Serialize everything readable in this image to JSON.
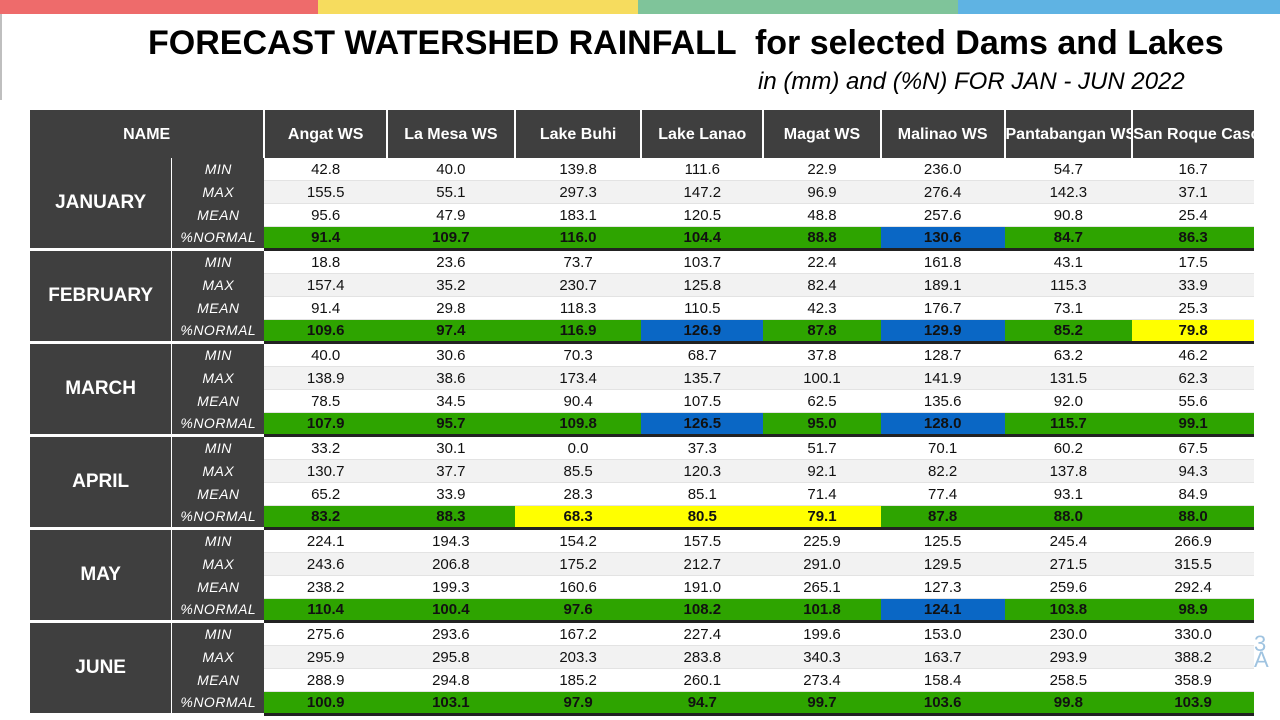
{
  "title": "FORECAST WATERSHED RAINFALL  for selected Dams and Lakes",
  "subtitle": "in (mm) and (%N) FOR JAN - JUN 2022",
  "colors": {
    "top_bar": [
      "#ee6b6b",
      "#f6dc5e",
      "#7fc49a",
      "#5fb3e3"
    ],
    "header_bg": "#3f3f3f",
    "normal_above": "#2ea400",
    "normal_much_above": "#0a67c5",
    "normal_below": "#ffff00"
  },
  "table": {
    "name_header": "NAME",
    "columns": [
      "Angat WS",
      "La Mesa WS",
      "Lake Buhi",
      "Lake Lanao",
      "Magat WS",
      "Malinao WS",
      "Pantabangan WS",
      "San Roque Cascade WS"
    ],
    "stat_labels": [
      "MIN",
      "MAX",
      "MEAN",
      "%NORMAL"
    ],
    "months": [
      {
        "name": "JANUARY",
        "min": [
          "42.8",
          "40.0",
          "139.8",
          "111.6",
          "22.9",
          "236.0",
          "54.7",
          "16.7"
        ],
        "max": [
          "155.5",
          "55.1",
          "297.3",
          "147.2",
          "96.9",
          "276.4",
          "142.3",
          "37.1"
        ],
        "mean": [
          "95.6",
          "47.9",
          "183.1",
          "120.5",
          "48.8",
          "257.6",
          "90.8",
          "25.4"
        ],
        "normal": [
          "91.4",
          "109.7",
          "116.0",
          "104.4",
          "88.8",
          "130.6",
          "84.7",
          "86.3"
        ],
        "normal_colors": [
          "green",
          "green",
          "green",
          "green",
          "green",
          "blue",
          "green",
          "green"
        ]
      },
      {
        "name": "FEBRUARY",
        "min": [
          "18.8",
          "23.6",
          "73.7",
          "103.7",
          "22.4",
          "161.8",
          "43.1",
          "17.5"
        ],
        "max": [
          "157.4",
          "35.2",
          "230.7",
          "125.8",
          "82.4",
          "189.1",
          "115.3",
          "33.9"
        ],
        "mean": [
          "91.4",
          "29.8",
          "118.3",
          "110.5",
          "42.3",
          "176.7",
          "73.1",
          "25.3"
        ],
        "normal": [
          "109.6",
          "97.4",
          "116.9",
          "126.9",
          "87.8",
          "129.9",
          "85.2",
          "79.8"
        ],
        "normal_colors": [
          "green",
          "green",
          "green",
          "blue",
          "green",
          "blue",
          "green",
          "yellow"
        ]
      },
      {
        "name": "MARCH",
        "min": [
          "40.0",
          "30.6",
          "70.3",
          "68.7",
          "37.8",
          "128.7",
          "63.2",
          "46.2"
        ],
        "max": [
          "138.9",
          "38.6",
          "173.4",
          "135.7",
          "100.1",
          "141.9",
          "131.5",
          "62.3"
        ],
        "mean": [
          "78.5",
          "34.5",
          "90.4",
          "107.5",
          "62.5",
          "135.6",
          "92.0",
          "55.6"
        ],
        "normal": [
          "107.9",
          "95.7",
          "109.8",
          "126.5",
          "95.0",
          "128.0",
          "115.7",
          "99.1"
        ],
        "normal_colors": [
          "green",
          "green",
          "green",
          "blue",
          "green",
          "blue",
          "green",
          "green"
        ]
      },
      {
        "name": "APRIL",
        "min": [
          "33.2",
          "30.1",
          "0.0",
          "37.3",
          "51.7",
          "70.1",
          "60.2",
          "67.5"
        ],
        "max": [
          "130.7",
          "37.7",
          "85.5",
          "120.3",
          "92.1",
          "82.2",
          "137.8",
          "94.3"
        ],
        "mean": [
          "65.2",
          "33.9",
          "28.3",
          "85.1",
          "71.4",
          "77.4",
          "93.1",
          "84.9"
        ],
        "normal": [
          "83.2",
          "88.3",
          "68.3",
          "80.5",
          "79.1",
          "87.8",
          "88.0",
          "88.0"
        ],
        "normal_colors": [
          "green",
          "green",
          "yellow",
          "yellow",
          "yellow",
          "green",
          "green",
          "green"
        ]
      },
      {
        "name": "MAY",
        "min": [
          "224.1",
          "194.3",
          "154.2",
          "157.5",
          "225.9",
          "125.5",
          "245.4",
          "266.9"
        ],
        "max": [
          "243.6",
          "206.8",
          "175.2",
          "212.7",
          "291.0",
          "129.5",
          "271.5",
          "315.5"
        ],
        "mean": [
          "238.2",
          "199.3",
          "160.6",
          "191.0",
          "265.1",
          "127.3",
          "259.6",
          "292.4"
        ],
        "normal": [
          "110.4",
          "100.4",
          "97.6",
          "108.2",
          "101.8",
          "124.1",
          "103.8",
          "98.9"
        ],
        "normal_colors": [
          "green",
          "green",
          "green",
          "green",
          "green",
          "blue",
          "green",
          "green"
        ]
      },
      {
        "name": "JUNE",
        "min": [
          "275.6",
          "293.6",
          "167.2",
          "227.4",
          "199.6",
          "153.0",
          "230.0",
          "330.0"
        ],
        "max": [
          "295.9",
          "295.8",
          "203.3",
          "283.8",
          "340.3",
          "163.7",
          "293.9",
          "388.2"
        ],
        "mean": [
          "288.9",
          "294.8",
          "185.2",
          "260.1",
          "273.4",
          "158.4",
          "258.5",
          "358.9"
        ],
        "normal": [
          "100.9",
          "103.1",
          "97.9",
          "94.7",
          "99.7",
          "103.6",
          "99.8",
          "103.9"
        ],
        "normal_colors": [
          "green",
          "green",
          "green",
          "green",
          "green",
          "green",
          "green",
          "green"
        ]
      }
    ]
  }
}
